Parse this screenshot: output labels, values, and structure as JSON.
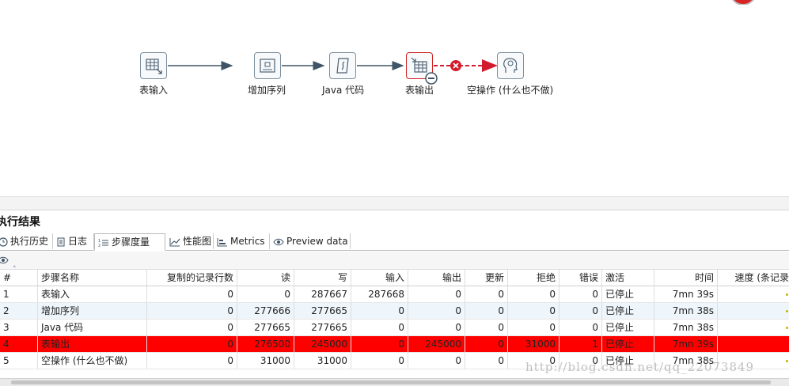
{
  "canvas": {
    "steps": [
      {
        "label": "表输入",
        "icon": "table-input-icon"
      },
      {
        "label": "增加序列",
        "icon": "add-sequence-icon"
      },
      {
        "label": "Java 代码",
        "icon": "java-code-icon"
      },
      {
        "label": "表输出",
        "icon": "table-output-icon",
        "status": "error"
      },
      {
        "label": "空操作 (什么也不做)",
        "icon": "dummy-head-icon"
      }
    ],
    "colors": {
      "hop": "#3f5567",
      "error_hop": "#d21b2c"
    }
  },
  "panel": {
    "title": "执行结果",
    "tabs": [
      {
        "label": "执行历史",
        "icon": "history-icon"
      },
      {
        "label": "日志",
        "icon": "log-icon"
      },
      {
        "label": "步骤度量",
        "icon": "step-metrics-icon",
        "active": true
      },
      {
        "label": "性能图",
        "icon": "performance-chart-icon"
      },
      {
        "label": "Metrics",
        "icon": "metrics-icon"
      },
      {
        "label": "Preview data",
        "icon": "eye-icon"
      }
    ]
  },
  "table": {
    "columns": [
      "#",
      "步骤名称",
      "复制的记录行数",
      "读",
      "写",
      "输入",
      "输出",
      "更新",
      "拒绝",
      "错误",
      "激活",
      "时间",
      "速度 (条记录"
    ],
    "rows": [
      [
        "1",
        "表输入",
        "0",
        "0",
        "287667",
        "287668",
        "0",
        "0",
        "0",
        "0",
        "已停止",
        "7mn 39s",
        ""
      ],
      [
        "2",
        "增加序列",
        "0",
        "277666",
        "277665",
        "0",
        "0",
        "0",
        "0",
        "0",
        "已停止",
        "7mn 38s",
        ""
      ],
      [
        "3",
        "Java 代码",
        "0",
        "277665",
        "277665",
        "0",
        "0",
        "0",
        "0",
        "0",
        "已停止",
        "7mn 38s",
        ""
      ],
      [
        "4",
        "表输出",
        "0",
        "276500",
        "245000",
        "0",
        "245000",
        "0",
        "31000",
        "1",
        "已停止",
        "7mn 39s",
        ""
      ],
      [
        "5",
        "空操作 (什么也不做)",
        "0",
        "31000",
        "31000",
        "0",
        "0",
        "0",
        "0",
        "0",
        "已停止",
        "7mn 38s",
        ""
      ]
    ],
    "error_row_color": "#ff0000"
  },
  "watermark": "http://blog.csdn.net/qq_22073849"
}
